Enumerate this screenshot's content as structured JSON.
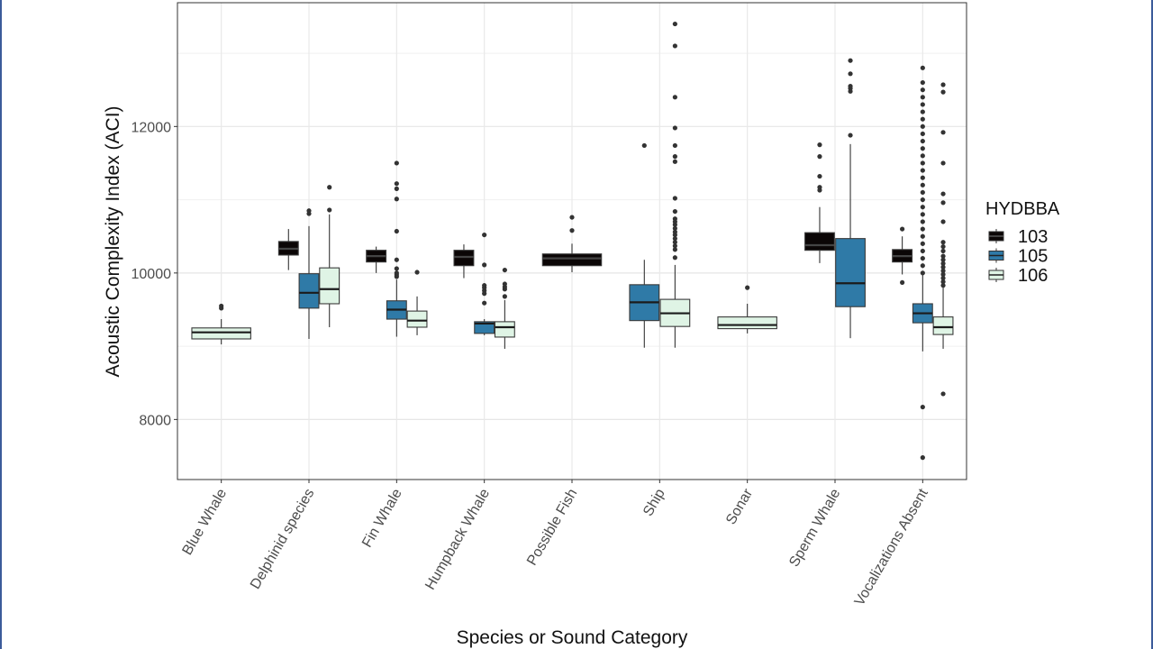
{
  "chart_data": {
    "type": "boxplot",
    "title": "",
    "xlabel": "Species or Sound Category",
    "ylabel": "Acoustic Complexity Index (ACI)",
    "ylim": [
      7180,
      13690
    ],
    "yticks": [
      8000,
      10000,
      12000
    ],
    "ytick_labels": [
      "8000",
      "10000",
      "12000"
    ],
    "minor_gridlines": [
      9000,
      11000,
      13000
    ],
    "grid": true,
    "categories": [
      "Blue Whale",
      "Delphinid species",
      "Fin Whale",
      "Humpback Whale",
      "Possible Fish",
      "Ship",
      "Sonar",
      "Sperm Whale",
      "Vocalizations Absent"
    ],
    "legend": {
      "title": "HYDBBA",
      "position": "right",
      "entries": [
        {
          "label": "103",
          "color": "#0b0606"
        },
        {
          "label": "105",
          "color": "#2f7aa7"
        },
        {
          "label": "106",
          "color": "#dff4e5"
        }
      ]
    },
    "boxes": [
      {
        "category": "Blue Whale",
        "group": "106",
        "whisker_low": 9025,
        "q1": 9100,
        "median": 9190,
        "q3": 9250,
        "whisker_high": 9370,
        "outliers": [
          9520,
          9550
        ]
      },
      {
        "category": "Delphinid species",
        "group": "103",
        "whisker_low": 10040,
        "q1": 10245,
        "median": 10330,
        "q3": 10430,
        "whisker_high": 10600,
        "outliers": []
      },
      {
        "category": "Delphinid species",
        "group": "105",
        "whisker_low": 9100,
        "q1": 9520,
        "median": 9730,
        "q3": 9990,
        "whisker_high": 10640,
        "outliers": [
          10810,
          10850
        ]
      },
      {
        "category": "Delphinid species",
        "group": "106",
        "whisker_low": 9260,
        "q1": 9580,
        "median": 9780,
        "q3": 10070,
        "whisker_high": 10800,
        "outliers": [
          10860,
          11170
        ]
      },
      {
        "category": "Fin Whale",
        "group": "103",
        "whisker_low": 10000,
        "q1": 10150,
        "median": 10230,
        "q3": 10310,
        "whisker_high": 10360,
        "outliers": []
      },
      {
        "category": "Fin Whale",
        "group": "105",
        "whisker_low": 9130,
        "q1": 9370,
        "median": 9500,
        "q3": 9620,
        "whisker_high": 9910,
        "outliers": [
          9950,
          9975,
          10000,
          10060,
          10180,
          10570,
          11010,
          11150,
          11220,
          11500
        ]
      },
      {
        "category": "Fin Whale",
        "group": "106",
        "whisker_low": 9150,
        "q1": 9260,
        "median": 9350,
        "q3": 9480,
        "whisker_high": 9680,
        "outliers": [
          10010
        ]
      },
      {
        "category": "Humpback Whale",
        "group": "103",
        "whisker_low": 9930,
        "q1": 10100,
        "median": 10220,
        "q3": 10310,
        "whisker_high": 10390,
        "outliers": []
      },
      {
        "category": "Humpback Whale",
        "group": "105",
        "whisker_low": 9150,
        "q1": 9175,
        "median": 9310,
        "q3": 9335,
        "whisker_high": 9370,
        "outliers": [
          9590,
          9720,
          9760,
          9800,
          9830,
          10110,
          10520
        ]
      },
      {
        "category": "Humpback Whale",
        "group": "106",
        "whisker_low": 8965,
        "q1": 9125,
        "median": 9260,
        "q3": 9335,
        "whisker_high": 9630,
        "outliers": [
          9680,
          9780,
          9810,
          9850,
          10040
        ]
      },
      {
        "category": "Possible Fish",
        "group": "103",
        "whisker_low": 10010,
        "q1": 10100,
        "median": 10200,
        "q3": 10260,
        "whisker_high": 10400,
        "outliers": [
          10580,
          10760
        ]
      },
      {
        "category": "Ship",
        "group": "105",
        "whisker_low": 8980,
        "q1": 9350,
        "median": 9600,
        "q3": 9840,
        "whisker_high": 10180,
        "outliers": [
          11740
        ]
      },
      {
        "category": "Ship",
        "group": "106",
        "whisker_low": 8980,
        "q1": 9270,
        "median": 9450,
        "q3": 9640,
        "whisker_high": 10110,
        "outliers": [
          10210,
          10320,
          10370,
          10420,
          10470,
          10520,
          10560,
          10610,
          10660,
          10700,
          10740,
          10840,
          11020,
          11520,
          11590,
          11740,
          11980,
          12400,
          13100,
          13400
        ]
      },
      {
        "category": "Sonar",
        "group": "106",
        "whisker_low": 9175,
        "q1": 9240,
        "median": 9290,
        "q3": 9400,
        "whisker_high": 9580,
        "outliers": [
          9800
        ]
      },
      {
        "category": "Sperm Whale",
        "group": "103",
        "whisker_low": 10135,
        "q1": 10310,
        "median": 10380,
        "q3": 10550,
        "whisker_high": 10900,
        "outliers": [
          11130,
          11170,
          11320,
          11590,
          11750
        ]
      },
      {
        "category": "Sperm Whale",
        "group": "105",
        "whisker_low": 9110,
        "q1": 9540,
        "median": 9860,
        "q3": 10470,
        "whisker_high": 11760,
        "outliers": [
          11880,
          12480,
          12520,
          12550,
          12720,
          12900
        ]
      },
      {
        "category": "Vocalizations Absent",
        "group": "103",
        "whisker_low": 9980,
        "q1": 10150,
        "median": 10230,
        "q3": 10320,
        "whisker_high": 10500,
        "outliers": [
          9870,
          10600
        ]
      },
      {
        "category": "Vocalizations Absent",
        "group": "105",
        "whisker_low": 8930,
        "q1": 9320,
        "median": 9450,
        "q3": 9580,
        "whisker_high": 9975,
        "outliers": [
          7480,
          8170,
          10000,
          10100,
          10200,
          10300,
          10400,
          10500,
          10600,
          10700,
          10800,
          10900,
          11000,
          11100,
          11200,
          11300,
          11400,
          11500,
          11600,
          11700,
          11800,
          11900,
          12000,
          12100,
          12200,
          12300,
          12400,
          12500,
          12600,
          12800
        ]
      },
      {
        "category": "Vocalizations Absent",
        "group": "106",
        "whisker_low": 8965,
        "q1": 9160,
        "median": 9260,
        "q3": 9400,
        "whisker_high": 9800,
        "outliers": [
          8350,
          9830,
          9880,
          9930,
          9980,
          10030,
          10080,
          10130,
          10180,
          10230,
          10300,
          10360,
          10420,
          10700,
          10960,
          11080,
          11500,
          11920,
          12470,
          12570
        ]
      }
    ]
  }
}
